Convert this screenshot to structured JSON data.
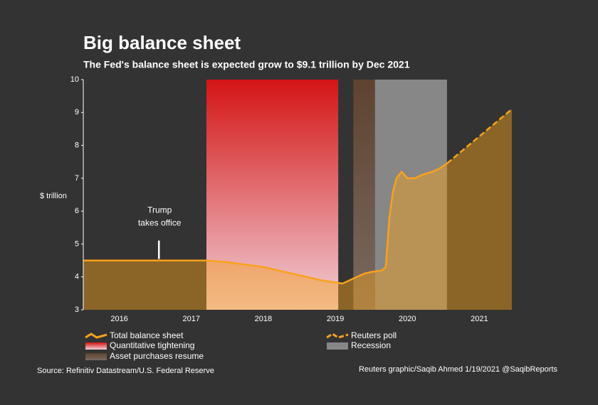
{
  "chart_data": {
    "type": "area-line",
    "title": "Big balance sheet",
    "subtitle": "The Fed's balance sheet is expected grow to $9.1 trillion by Dec 2021",
    "y_label": "$ trillion",
    "xlim": [
      2016,
      2022
    ],
    "xticks": [
      {
        "value": 2016.5,
        "label": "2016"
      },
      {
        "value": 2017.5,
        "label": "2017"
      },
      {
        "value": 2018.5,
        "label": "2018"
      },
      {
        "value": 2019.5,
        "label": "2019"
      },
      {
        "value": 2020.5,
        "label": "2020"
      },
      {
        "value": 2021.5,
        "label": "2021"
      }
    ],
    "ylim": [
      3,
      10
    ],
    "yticks": [
      3,
      4,
      5,
      6,
      7,
      8,
      9,
      10
    ],
    "series": [
      {
        "name": "Total balance sheet",
        "color": "#f7a21b",
        "dashed": false,
        "x": [
          2016.0,
          2016.5,
          2017.0,
          2017.71,
          2018.0,
          2018.5,
          2019.0,
          2019.3,
          2019.6,
          2019.75,
          2019.9,
          2020.0,
          2020.15,
          2020.2,
          2020.25,
          2020.3,
          2020.35,
          2020.42,
          2020.5,
          2020.6,
          2020.7,
          2020.85,
          2020.95,
          2021.05
        ],
        "values": [
          4.5,
          4.5,
          4.5,
          4.5,
          4.45,
          4.3,
          4.05,
          3.9,
          3.8,
          3.95,
          4.1,
          4.15,
          4.2,
          4.3,
          5.8,
          6.6,
          7.0,
          7.2,
          7.0,
          7.0,
          7.1,
          7.2,
          7.3,
          7.45
        ]
      },
      {
        "name": "Reuters poll",
        "color": "#f7a21b",
        "dashed": true,
        "x": [
          2021.05,
          2021.95
        ],
        "values": [
          7.45,
          9.1
        ]
      }
    ],
    "bands": [
      {
        "name": "Quantitative tightening",
        "color_top": "#d41414",
        "color_bottom": "#f0d0d8",
        "x": [
          2017.71,
          2019.54
        ]
      },
      {
        "name": "Asset purchases resume",
        "color_top": "#5e4330",
        "color_bottom": "#7a6a60",
        "x": [
          2019.75,
          2020.05
        ]
      },
      {
        "name": "Recession",
        "color_top": "#878787",
        "color_bottom": "#878787",
        "x": [
          2020.05,
          2021.05
        ]
      }
    ],
    "annotation": {
      "lines": [
        "Trump",
        "takes office"
      ],
      "x": 2017.05,
      "y": 4.5
    },
    "source": "Source: Refinitiv Datastream/U.S. Federal Reserve",
    "credit": "Reuters graphic/Saqib Ahmed 1/19/2021 @SaqibReports"
  }
}
